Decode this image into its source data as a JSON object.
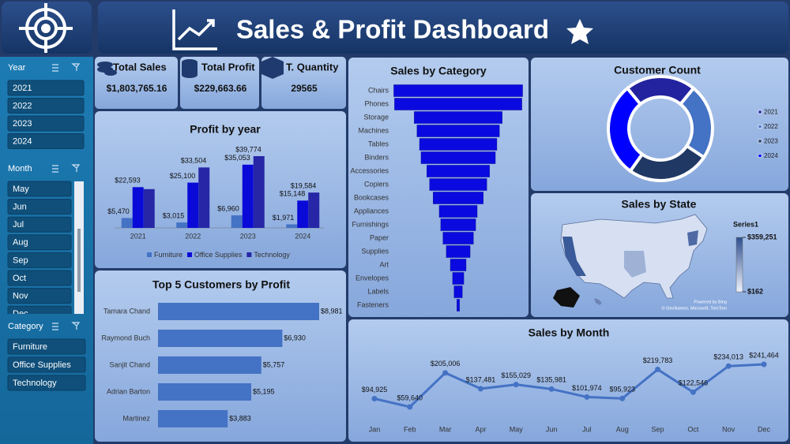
{
  "header": {
    "title": "Sales & Profit Dashboard"
  },
  "slicers": [
    {
      "title": "Year",
      "items": [
        "2021",
        "2022",
        "2023",
        "2024"
      ]
    },
    {
      "title": "Month",
      "items": [
        "May",
        "Jun",
        "Jul",
        "Aug",
        "Sep",
        "Oct",
        "Nov",
        "Dec"
      ]
    },
    {
      "title": "Category",
      "items": [
        "Furniture",
        "Office Supplies",
        "Technology"
      ]
    }
  ],
  "kpis": [
    {
      "label": "Total Sales",
      "value": "$1,803,765.16"
    },
    {
      "label": "Total Profit",
      "value": "$229,663.66"
    },
    {
      "label": "T. Quantity",
      "value": "29565"
    }
  ],
  "chart_data": [
    {
      "type": "bar",
      "title": "Profit by year",
      "categories": [
        "2021",
        "2022",
        "2023",
        "2024"
      ],
      "series": [
        {
          "name": "Furniture",
          "color": "#4472c4",
          "values": [
            5470,
            3015,
            6960,
            1971
          ],
          "value_labels": [
            "$5,470",
            "$3,015",
            "$6,960",
            "$1,971"
          ]
        },
        {
          "name": "Office Supplies",
          "color": "#0a0ad8",
          "values": [
            22593,
            25100,
            35053,
            15148
          ],
          "value_labels": [
            "$22,593",
            "$25,100",
            "$35,053",
            "$15,148"
          ]
        },
        {
          "name": "Technology",
          "color": "#2626a6",
          "values": [
            21500,
            33504,
            39774,
            19584
          ],
          "value_labels": [
            null,
            "$33,504",
            "$39,774",
            "$19,584"
          ]
        }
      ],
      "legend": "bottom"
    },
    {
      "type": "hbar",
      "title": "Top 5 Customers by Profit",
      "categories": [
        "Tamara Chand",
        "Raymond Buch",
        "Sanjit Chand",
        "Adrian Barton",
        "Martinez"
      ],
      "values": [
        8981,
        6930,
        5757,
        5195,
        3883
      ],
      "value_labels": [
        "$8,981",
        "$6,930",
        "$5,757",
        "$5,195",
        "$3,883"
      ],
      "color": "#4472c4"
    },
    {
      "type": "funnel",
      "title": "Sales by Category",
      "categories": [
        "Chairs",
        "Phones",
        "Storage",
        "Machines",
        "Tables",
        "Binders",
        "Accessories",
        "Copiers",
        "Bookcases",
        "Appliances",
        "Furnishings",
        "Paper",
        "Supplies",
        "Art",
        "Envelopes",
        "Labels",
        "Fasteners"
      ],
      "values": [
        255000,
        252000,
        174000,
        163000,
        153000,
        147000,
        124000,
        113000,
        99000,
        75000,
        69000,
        60000,
        47000,
        31000,
        22000,
        16000,
        5000
      ],
      "color": "#0a0ae0"
    },
    {
      "type": "donut",
      "title": "Customer Count",
      "categories": [
        "2021",
        "2022",
        "2023",
        "2024"
      ],
      "values": [
        595,
        636,
        693,
        795
      ],
      "colors": [
        "#2323a0",
        "#4472c4",
        "#203864",
        "#0000ff"
      ],
      "legend": "right"
    },
    {
      "type": "map",
      "title": "Sales by State",
      "legend_title": "Series1",
      "colorbar_ticks": [
        {
          "value": 359251,
          "label": "$359,251"
        },
        {
          "value": 162,
          "label": "$162"
        }
      ],
      "colors": [
        "#eef2fa",
        "#2f4f8f"
      ],
      "attribution": [
        "Powered by Bing",
        "© GeoNames, Microsoft, TomTom"
      ]
    },
    {
      "type": "line",
      "title": "Sales by Month",
      "categories": [
        "Jan",
        "Feb",
        "Mar",
        "Apr",
        "May",
        "Jun",
        "Jul",
        "Aug",
        "Sep",
        "Oct",
        "Nov",
        "Dec"
      ],
      "values": [
        94925,
        59640,
        205006,
        137481,
        155029,
        135981,
        101974,
        95923,
        219783,
        122546,
        234013,
        241464
      ],
      "value_labels": [
        "$94,925",
        "$59,640",
        "$205,006",
        "$137,481",
        "$155,029",
        "$135,981",
        "$101,974",
        "$95,923",
        "$219,783",
        "$122,546",
        "$234,013",
        "$241,464"
      ],
      "color": "#4472c4"
    }
  ]
}
